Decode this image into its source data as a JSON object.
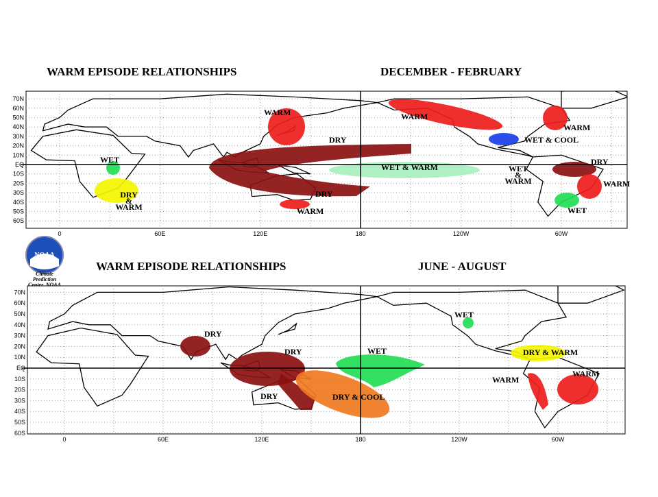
{
  "maps": [
    {
      "title": "WARM EPISODE RELATIONSHIPS",
      "season": "DECEMBER - FEBRUARY",
      "lat_labels": [
        "70N",
        "60N",
        "50N",
        "40N",
        "30N",
        "20N",
        "10N",
        "EQ",
        "10S",
        "20S",
        "30S",
        "40S",
        "50S",
        "60S"
      ],
      "lon_labels": [
        "0",
        "60E",
        "120E",
        "180",
        "120W",
        "60W"
      ],
      "regions": [
        {
          "lines": [
            "WARM"
          ]
        },
        {
          "lines": [
            "DRY"
          ]
        },
        {
          "lines": [
            "WET"
          ]
        },
        {
          "lines": [
            "DRY",
            "&",
            "WARM"
          ]
        },
        {
          "lines": [
            "DRY"
          ]
        },
        {
          "lines": [
            "WARM"
          ]
        },
        {
          "lines": [
            "WET & WARM"
          ]
        },
        {
          "lines": [
            "WET",
            "&",
            "WARM"
          ]
        },
        {
          "lines": [
            "WARM"
          ]
        },
        {
          "lines": [
            "WARM"
          ]
        },
        {
          "lines": [
            "WET & COOL"
          ]
        },
        {
          "lines": [
            "DRY"
          ]
        },
        {
          "lines": [
            "WARM"
          ]
        },
        {
          "lines": [
            "WET"
          ]
        }
      ]
    },
    {
      "title": "WARM EPISODE RELATIONSHIPS",
      "season": "JUNE - AUGUST",
      "lat_labels": [
        "70N",
        "60N",
        "50N",
        "40N",
        "30N",
        "20N",
        "10N",
        "EQ",
        "10S",
        "20S",
        "30S",
        "40S",
        "50S",
        "60S"
      ],
      "lon_labels": [
        "0",
        "60E",
        "120E",
        "180",
        "120W",
        "60W"
      ],
      "regions": [
        {
          "lines": [
            "DRY"
          ]
        },
        {
          "lines": [
            "DRY"
          ]
        },
        {
          "lines": [
            "DRY"
          ]
        },
        {
          "lines": [
            "DRY & COOL"
          ]
        },
        {
          "lines": [
            "WET"
          ]
        },
        {
          "lines": [
            "WET"
          ]
        },
        {
          "lines": [
            "DRY & WARM"
          ]
        },
        {
          "lines": [
            "WARM"
          ]
        },
        {
          "lines": [
            "WARM"
          ]
        }
      ]
    }
  ],
  "logo": {
    "name": "NOAA",
    "caption": [
      "Climate",
      "Prediction",
      "Center, NOAA"
    ]
  }
}
